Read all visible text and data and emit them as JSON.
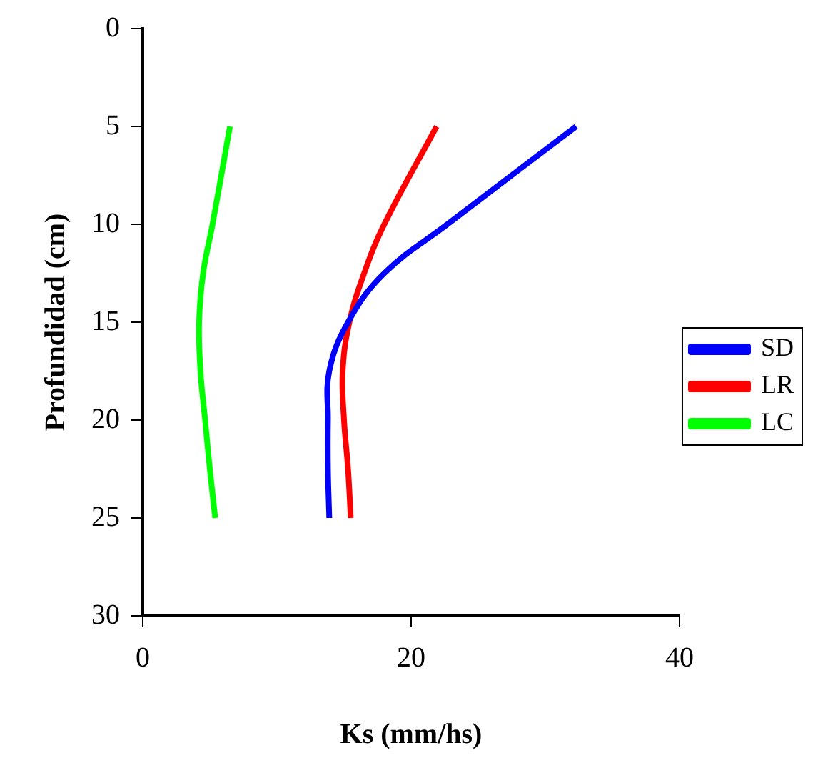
{
  "chart_data": {
    "type": "line",
    "xlabel": "Ks (mm/hs)",
    "ylabel": "Profundidad (cm)",
    "xlim": [
      0,
      40
    ],
    "xticks": [
      0,
      20,
      40
    ],
    "ylim": [
      30,
      0
    ],
    "yticks": [
      0,
      5,
      10,
      15,
      20,
      25,
      30
    ],
    "grid": false,
    "legend": "right",
    "marker": "none",
    "line_style": "solid",
    "series": [
      {
        "name": "SD",
        "color": "#0000ff",
        "x": [
          32.3,
          22.7,
          18.0,
          15.3,
          13.9,
          13.8,
          13.8,
          13.9
        ],
        "values": [
          5,
          10,
          12.5,
          15,
          17.5,
          20,
          22.5,
          25
        ]
      },
      {
        "name": "LR",
        "color": "#ff0000",
        "x": [
          21.9,
          18.0,
          16.5,
          15.4,
          14.9,
          15.0,
          15.3,
          15.5
        ],
        "values": [
          5,
          10,
          12.5,
          15,
          17.5,
          20,
          22.5,
          25
        ]
      },
      {
        "name": "LC",
        "color": "#00ff00",
        "x": [
          6.5,
          5.2,
          4.5,
          4.2,
          4.3,
          4.65,
          5.0,
          5.4
        ],
        "values": [
          5,
          10,
          12.5,
          15,
          17.5,
          20,
          22.5,
          25
        ]
      }
    ]
  }
}
